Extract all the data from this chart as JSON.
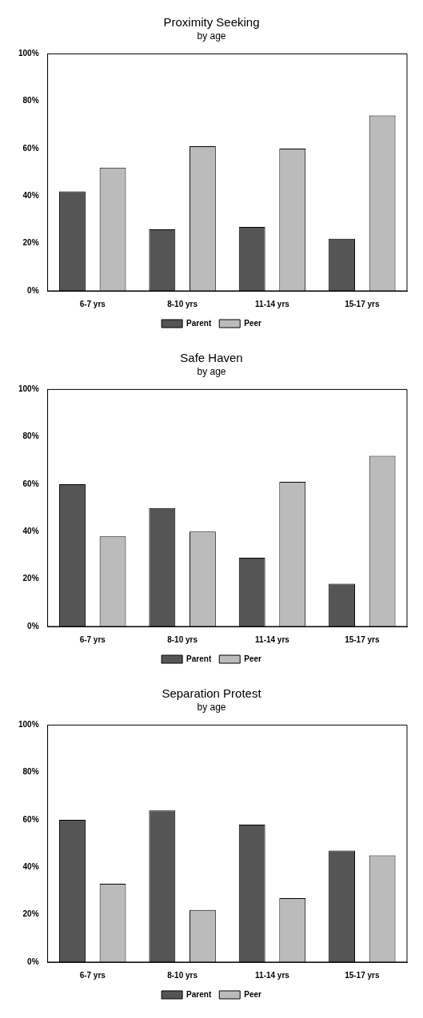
{
  "chart_data": [
    {
      "type": "bar",
      "title": "Proximity Seeking",
      "subtitle": "by age",
      "categories": [
        "6-7 yrs",
        "8-10 yrs",
        "11-14 yrs",
        "15-17 yrs"
      ],
      "series": [
        {
          "name": "Parent",
          "color": "#555555",
          "values": [
            42,
            26,
            27,
            22
          ]
        },
        {
          "name": "Peer",
          "color": "#bbbbbb",
          "values": [
            52,
            61,
            60,
            74
          ]
        }
      ],
      "ylim": [
        0,
        100
      ],
      "yticks": [
        {
          "value": 0,
          "label": "0%"
        },
        {
          "value": 20,
          "label": "20%"
        },
        {
          "value": 40,
          "label": "40%"
        },
        {
          "value": 60,
          "label": "60%"
        },
        {
          "value": 80,
          "label": "80%"
        },
        {
          "value": 100,
          "label": "100%"
        }
      ],
      "grid": false,
      "legend": "bottom"
    },
    {
      "type": "bar",
      "title": "Safe Haven",
      "subtitle": "by age",
      "categories": [
        "6-7 yrs",
        "8-10 yrs",
        "11-14 yrs",
        "15-17 yrs"
      ],
      "series": [
        {
          "name": "Parent",
          "color": "#555555",
          "values": [
            60,
            50,
            29,
            18
          ]
        },
        {
          "name": "Peer",
          "color": "#bbbbbb",
          "values": [
            38,
            40,
            61,
            72
          ]
        }
      ],
      "ylim": [
        0,
        100
      ],
      "yticks": [
        {
          "value": 0,
          "label": "0%"
        },
        {
          "value": 20,
          "label": "20%"
        },
        {
          "value": 40,
          "label": "40%"
        },
        {
          "value": 60,
          "label": "60%"
        },
        {
          "value": 80,
          "label": "80%"
        },
        {
          "value": 100,
          "label": "100%"
        }
      ],
      "grid": false,
      "legend": "bottom"
    },
    {
      "type": "bar",
      "title": "Separation Protest",
      "subtitle": "by age",
      "categories": [
        "6-7 yrs",
        "8-10 yrs",
        "11-14 yrs",
        "15-17 yrs"
      ],
      "series": [
        {
          "name": "Parent",
          "color": "#555555",
          "values": [
            60,
            64,
            58,
            47
          ]
        },
        {
          "name": "Peer",
          "color": "#bbbbbb",
          "values": [
            33,
            22,
            27,
            45
          ]
        }
      ],
      "ylim": [
        0,
        100
      ],
      "yticks": [
        {
          "value": 0,
          "label": "0%"
        },
        {
          "value": 20,
          "label": "20%"
        },
        {
          "value": 40,
          "label": "40%"
        },
        {
          "value": 60,
          "label": "60%"
        },
        {
          "value": 80,
          "label": "80%"
        },
        {
          "value": 100,
          "label": "100%"
        }
      ],
      "grid": false,
      "legend": "bottom"
    }
  ]
}
